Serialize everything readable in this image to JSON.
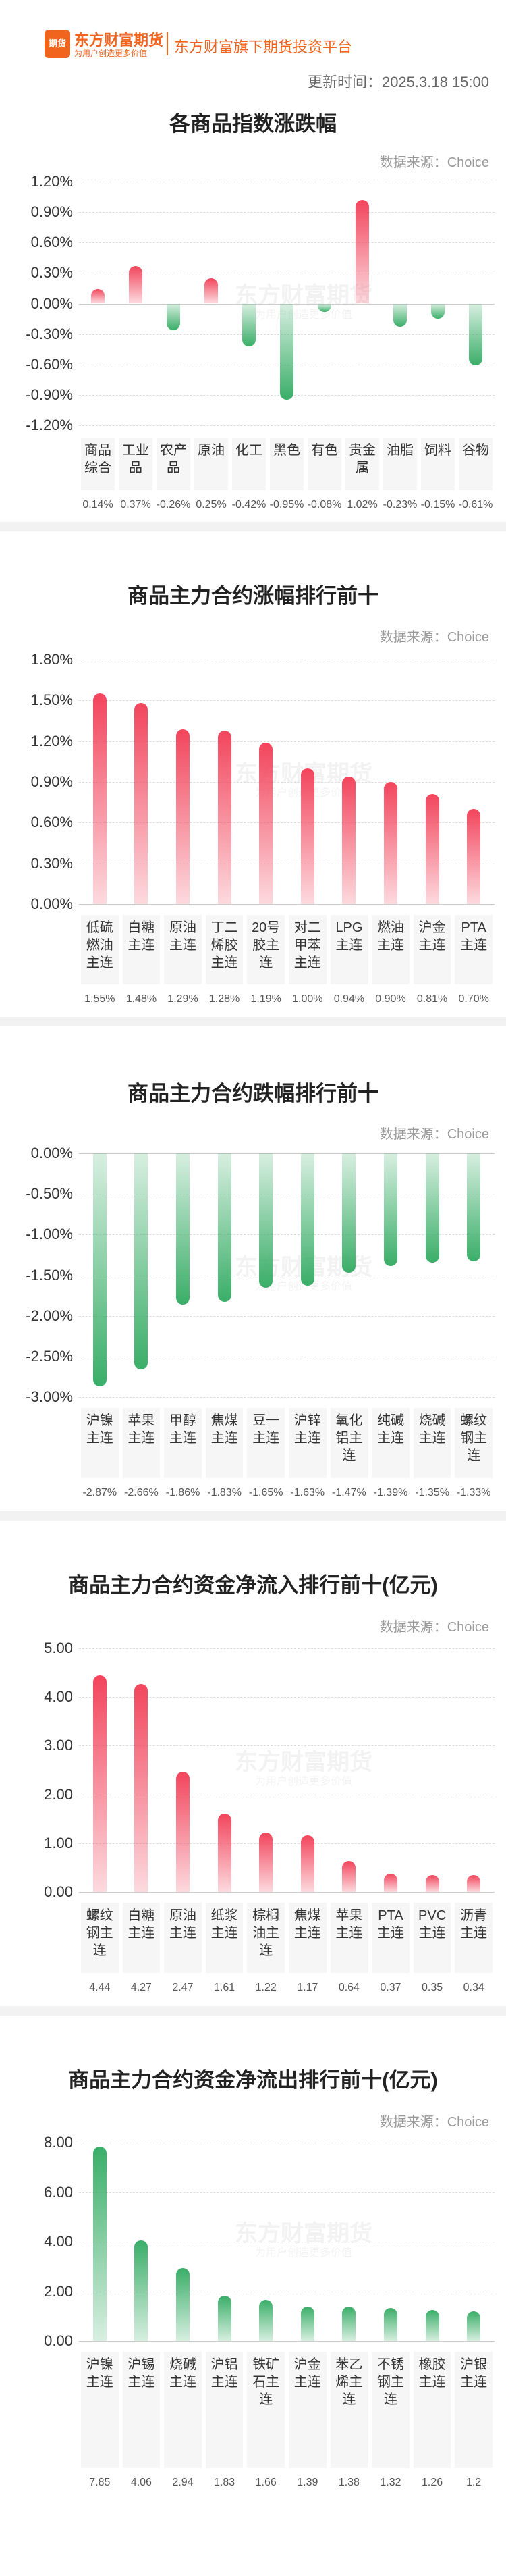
{
  "header": {
    "logo_badge": "期货",
    "logo_name": "东方财富期货",
    "logo_slogan": "为用户创造更多价值",
    "platform": "东方财富旗下期货投资平台",
    "update_time": "更新时间：2025.3.18 15:00"
  },
  "watermark": {
    "name": "东方财富期货",
    "slogan": "为用户创造更多价值"
  },
  "chart_data": [
    {
      "type": "bar",
      "title": "各商品指数涨跌幅",
      "source": "数据来源：Choice",
      "up_color": "#f2455c",
      "down_color": "#3aae68",
      "grid": true,
      "categories": [
        "商品综合",
        "工业品",
        "农产品",
        "原油",
        "化工",
        "黑色",
        "有色",
        "贵金属",
        "油脂",
        "饲料",
        "谷物"
      ],
      "values": [
        0.14,
        0.37,
        -0.26,
        0.25,
        -0.42,
        -0.95,
        -0.08,
        1.02,
        -0.23,
        -0.15,
        -0.61
      ],
      "value_labels": [
        "0.14%",
        "0.37%",
        "-0.26%",
        "0.25%",
        "-0.42%",
        "-0.95%",
        "-0.08%",
        "1.02%",
        "-0.23%",
        "-0.15%",
        "-0.61%"
      ],
      "ylim": [
        -1.2,
        1.2
      ],
      "yticks": [
        {
          "value": 1.2,
          "label": "1.20%"
        },
        {
          "value": 0.9,
          "label": "0.90%"
        },
        {
          "value": 0.6,
          "label": "0.60%"
        },
        {
          "value": 0.3,
          "label": "0.30%"
        },
        {
          "value": 0,
          "label": "0.00%"
        },
        {
          "value": -0.3,
          "label": "-0.30%"
        },
        {
          "value": -0.6,
          "label": "-0.60%"
        },
        {
          "value": -0.9,
          "label": "-0.90%"
        },
        {
          "value": -1.2,
          "label": "-1.20%"
        }
      ]
    },
    {
      "type": "bar",
      "title": "商品主力合约涨幅排行前十",
      "source": "数据来源：Choice",
      "up_color": "#f2455c",
      "down_color": "#3aae68",
      "grid": true,
      "categories": [
        "低硫燃油主连",
        "白糖主连",
        "原油主连",
        "丁二烯胶主连",
        "20号胶主连",
        "对二甲苯主连",
        "LPG主连",
        "燃油主连",
        "沪金主连",
        "PTA主连"
      ],
      "values": [
        1.55,
        1.48,
        1.29,
        1.28,
        1.19,
        1.0,
        0.94,
        0.9,
        0.81,
        0.7
      ],
      "value_labels": [
        "1.55%",
        "1.48%",
        "1.29%",
        "1.28%",
        "1.19%",
        "1.00%",
        "0.94%",
        "0.90%",
        "0.81%",
        "0.70%"
      ],
      "ylim": [
        0,
        1.8
      ],
      "yticks": [
        {
          "value": 1.8,
          "label": "1.80%"
        },
        {
          "value": 1.5,
          "label": "1.50%"
        },
        {
          "value": 1.2,
          "label": "1.20%"
        },
        {
          "value": 0.9,
          "label": "0.90%"
        },
        {
          "value": 0.6,
          "label": "0.60%"
        },
        {
          "value": 0.3,
          "label": "0.30%"
        },
        {
          "value": 0,
          "label": "0.00%"
        }
      ]
    },
    {
      "type": "bar",
      "title": "商品主力合约跌幅排行前十",
      "source": "数据来源：Choice",
      "up_color": "#f2455c",
      "down_color": "#3aae68",
      "grid": true,
      "categories": [
        "沪镍主连",
        "苹果主连",
        "甲醇主连",
        "焦煤主连",
        "豆一主连",
        "沪锌主连",
        "氧化铝主连",
        "纯碱主连",
        "烧碱主连",
        "螺纹钢主连"
      ],
      "values": [
        -2.87,
        -2.66,
        -1.86,
        -1.83,
        -1.65,
        -1.63,
        -1.47,
        -1.39,
        -1.35,
        -1.33
      ],
      "value_labels": [
        "-2.87%",
        "-2.66%",
        "-1.86%",
        "-1.83%",
        "-1.65%",
        "-1.63%",
        "-1.47%",
        "-1.39%",
        "-1.35%",
        "-1.33%"
      ],
      "ylim": [
        -3,
        0
      ],
      "yticks": [
        {
          "value": 0,
          "label": "0.00%"
        },
        {
          "value": -0.5,
          "label": "-0.50%"
        },
        {
          "value": -1,
          "label": "-1.00%"
        },
        {
          "value": -1.5,
          "label": "-1.50%"
        },
        {
          "value": -2,
          "label": "-2.00%"
        },
        {
          "value": -2.5,
          "label": "-2.50%"
        },
        {
          "value": -3,
          "label": "-3.00%"
        }
      ]
    },
    {
      "type": "bar",
      "title": "商品主力合约资金净流入排行前十(亿元)",
      "source": "数据来源：Choice",
      "up_color": "#f2455c",
      "down_color": "#3aae68",
      "grid": true,
      "categories": [
        "螺纹钢主连",
        "白糖主连",
        "原油主连",
        "纸浆主连",
        "棕榈油主连",
        "焦煤主连",
        "苹果主连",
        "PTA主连",
        "PVC主连",
        "沥青主连"
      ],
      "values": [
        4.44,
        4.27,
        2.47,
        1.61,
        1.22,
        1.17,
        0.64,
        0.37,
        0.35,
        0.34
      ],
      "ylim": [
        0,
        5
      ],
      "yticks": [
        {
          "value": 5,
          "label": "5.00"
        },
        {
          "value": 4,
          "label": "4.00"
        },
        {
          "value": 3,
          "label": "3.00"
        },
        {
          "value": 2,
          "label": "2.00"
        },
        {
          "value": 1,
          "label": "1.00"
        },
        {
          "value": 0,
          "label": "0.00"
        }
      ]
    },
    {
      "type": "bar",
      "title": "商品主力合约资金净流出排行前十(亿元)",
      "source": "数据来源：Choice",
      "up_color": "#3aae68",
      "down_color": "#3aae68",
      "grid": true,
      "categories": [
        "沪镍主连",
        "沪锡主连",
        "烧碱主连",
        "沪铝主连",
        "铁矿石主连",
        "沪金主连",
        "苯乙烯主连",
        "不锈钢主连",
        "橡胶主连",
        "沪银主连"
      ],
      "values": [
        7.85,
        4.06,
        2.94,
        1.83,
        1.66,
        1.39,
        1.38,
        1.32,
        1.26,
        1.2
      ],
      "ylim": [
        0,
        8
      ],
      "yticks": [
        {
          "value": 8,
          "label": "8.00"
        },
        {
          "value": 6,
          "label": "6.00"
        },
        {
          "value": 4,
          "label": "4.00"
        },
        {
          "value": 2,
          "label": "2.00"
        },
        {
          "value": 0,
          "label": "0.00"
        }
      ]
    }
  ]
}
